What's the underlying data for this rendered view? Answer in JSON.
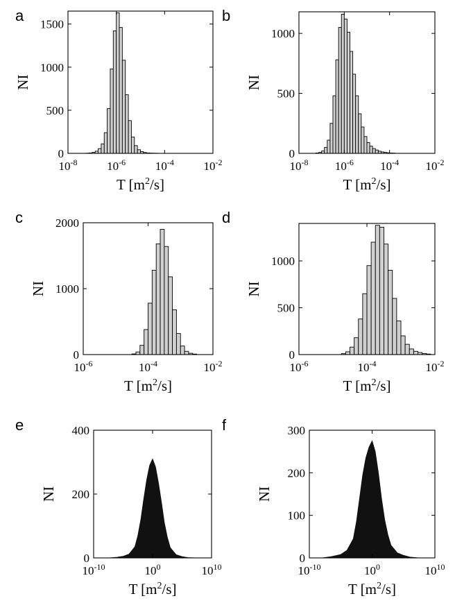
{
  "figure": {
    "panels": [
      "a",
      "b",
      "c",
      "d",
      "e",
      "f"
    ]
  },
  "chart_data": [
    {
      "panel": "a",
      "type": "bar",
      "xscale": "log",
      "xlim": [
        1e-08,
        0.01
      ],
      "ylim": [
        0,
        1650
      ],
      "xlabel": "T [m²/s]",
      "ylabel": "NI",
      "xticks": [
        {
          "base": "10",
          "exp": "-8"
        },
        {
          "base": "10",
          "exp": "-6"
        },
        {
          "base": "10",
          "exp": "-4"
        },
        {
          "base": "10",
          "exp": "-2"
        }
      ],
      "yticks": [
        "0",
        "500",
        "1000",
        "1500"
      ],
      "bar_color": "#d0d0d0",
      "bin_edges_log10": [
        -7.25,
        -7.125,
        -7,
        -6.875,
        -6.75,
        -6.625,
        -6.5,
        -6.375,
        -6.25,
        -6.125,
        -6,
        -5.875,
        -5.75,
        -5.625,
        -5.5,
        -5.375,
        -5.25,
        -5.125,
        -5,
        -4.875,
        -4.75,
        -4.625,
        -4.5,
        -4.375,
        -4.25
      ],
      "counts": [
        2,
        5,
        12,
        25,
        55,
        110,
        240,
        520,
        980,
        1420,
        1630,
        1460,
        1080,
        680,
        380,
        190,
        90,
        42,
        20,
        10,
        5,
        3,
        2,
        1
      ]
    },
    {
      "panel": "b",
      "type": "bar",
      "xscale": "log",
      "xlim": [
        1e-08,
        0.01
      ],
      "ylim": [
        0,
        1180
      ],
      "xlabel": "T [m²/s]",
      "ylabel": "NI",
      "xticks": [
        {
          "base": "10",
          "exp": "-8"
        },
        {
          "base": "10",
          "exp": "-6"
        },
        {
          "base": "10",
          "exp": "-4"
        },
        {
          "base": "10",
          "exp": "-2"
        }
      ],
      "yticks": [
        "0",
        "500",
        "1000"
      ],
      "bar_color": "#d0d0d0",
      "bin_edges_log10": [
        -7.25,
        -7.125,
        -7,
        -6.875,
        -6.75,
        -6.625,
        -6.5,
        -6.375,
        -6.25,
        -6.125,
        -6,
        -5.875,
        -5.75,
        -5.625,
        -5.5,
        -5.375,
        -5.25,
        -5.125,
        -5,
        -4.875,
        -4.75,
        -4.625,
        -4.5,
        -4.375,
        -4.25,
        -4.125,
        -4,
        -3.875,
        -3.75
      ],
      "counts": [
        3,
        8,
        20,
        50,
        110,
        250,
        480,
        780,
        1050,
        1160,
        1120,
        1010,
        850,
        660,
        480,
        330,
        220,
        140,
        90,
        60,
        40,
        28,
        18,
        12,
        8,
        5,
        3,
        2
      ]
    },
    {
      "panel": "c",
      "type": "bar",
      "xscale": "log",
      "xlim": [
        1e-06,
        0.01
      ],
      "ylim": [
        0,
        2000
      ],
      "xlabel": "T [m²/s]",
      "ylabel": "NI",
      "xticks": [
        {
          "base": "10",
          "exp": "-6"
        },
        {
          "base": "10",
          "exp": "-4"
        },
        {
          "base": "10",
          "exp": "-2"
        }
      ],
      "yticks": [
        "0",
        "1000",
        "2000"
      ],
      "bar_color": "#d0d0d0",
      "bin_edges_log10": [
        -4.5,
        -4.375,
        -4.25,
        -4.125,
        -4,
        -3.875,
        -3.75,
        -3.625,
        -3.5,
        -3.375,
        -3.25,
        -3.125,
        -3,
        -2.875,
        -2.75,
        -2.625,
        -2.5
      ],
      "counts": [
        10,
        40,
        140,
        380,
        780,
        1280,
        1680,
        1900,
        1640,
        1180,
        680,
        320,
        130,
        50,
        20,
        8
      ]
    },
    {
      "panel": "d",
      "type": "bar",
      "xscale": "log",
      "xlim": [
        1e-06,
        0.01
      ],
      "ylim": [
        0,
        1400
      ],
      "xlabel": "T [m²/s]",
      "ylabel": "NI",
      "xticks": [
        {
          "base": "10",
          "exp": "-6"
        },
        {
          "base": "10",
          "exp": "-4"
        },
        {
          "base": "10",
          "exp": "-2"
        }
      ],
      "yticks": [
        "0",
        "500",
        "1000"
      ],
      "bar_color": "#d0d0d0",
      "bin_edges_log10": [
        -4.75,
        -4.625,
        -4.5,
        -4.375,
        -4.25,
        -4.125,
        -4,
        -3.875,
        -3.75,
        -3.625,
        -3.5,
        -3.375,
        -3.25,
        -3.125,
        -3,
        -2.875,
        -2.75,
        -2.625,
        -2.5,
        -2.375,
        -2.25,
        -2.125
      ],
      "counts": [
        10,
        30,
        80,
        180,
        380,
        650,
        950,
        1200,
        1380,
        1360,
        1180,
        900,
        600,
        360,
        200,
        110,
        60,
        35,
        22,
        12,
        6
      ]
    },
    {
      "panel": "e",
      "type": "area",
      "xscale": "log",
      "xlim": [
        1e-10,
        10000000000.0
      ],
      "ylim": [
        0,
        400
      ],
      "xlabel": "T [m²/s]",
      "ylabel": "NI",
      "xticks": [
        {
          "base": "10",
          "exp": "-10"
        },
        {
          "base": "10",
          "exp": "0"
        },
        {
          "base": "10",
          "exp": "10"
        }
      ],
      "yticks": [
        "0",
        "200",
        "400"
      ],
      "fill_color": "#111111",
      "log10_x": [
        -7.5,
        -6,
        -5,
        -4,
        -3,
        -2.5,
        -2,
        -1.5,
        -1,
        -0.5,
        0,
        0.5,
        1,
        1.5,
        2,
        2.5,
        3,
        4,
        5,
        6,
        7.5
      ],
      "values": [
        0,
        2,
        5,
        12,
        35,
        70,
        120,
        185,
        245,
        290,
        310,
        285,
        235,
        175,
        110,
        65,
        32,
        10,
        4,
        1,
        0
      ]
    },
    {
      "panel": "f",
      "type": "area",
      "xscale": "log",
      "xlim": [
        1e-10,
        10000000000.0
      ],
      "ylim": [
        0,
        300
      ],
      "xlabel": "T [m²/s]",
      "ylabel": "NI",
      "xticks": [
        {
          "base": "10",
          "exp": "-10"
        },
        {
          "base": "10",
          "exp": "0"
        },
        {
          "base": "10",
          "exp": "10"
        }
      ],
      "yticks": [
        "0",
        "100",
        "200",
        "300"
      ],
      "fill_color": "#111111",
      "log10_x": [
        -8,
        -6.5,
        -5,
        -4,
        -3,
        -2.5,
        -2,
        -1.5,
        -1,
        -0.5,
        0,
        0.5,
        1,
        1.5,
        2,
        2.5,
        3,
        4,
        5,
        6,
        7.5
      ],
      "values": [
        0,
        3,
        8,
        18,
        45,
        85,
        140,
        195,
        235,
        260,
        275,
        250,
        200,
        140,
        90,
        55,
        30,
        12,
        6,
        2,
        0
      ]
    }
  ]
}
